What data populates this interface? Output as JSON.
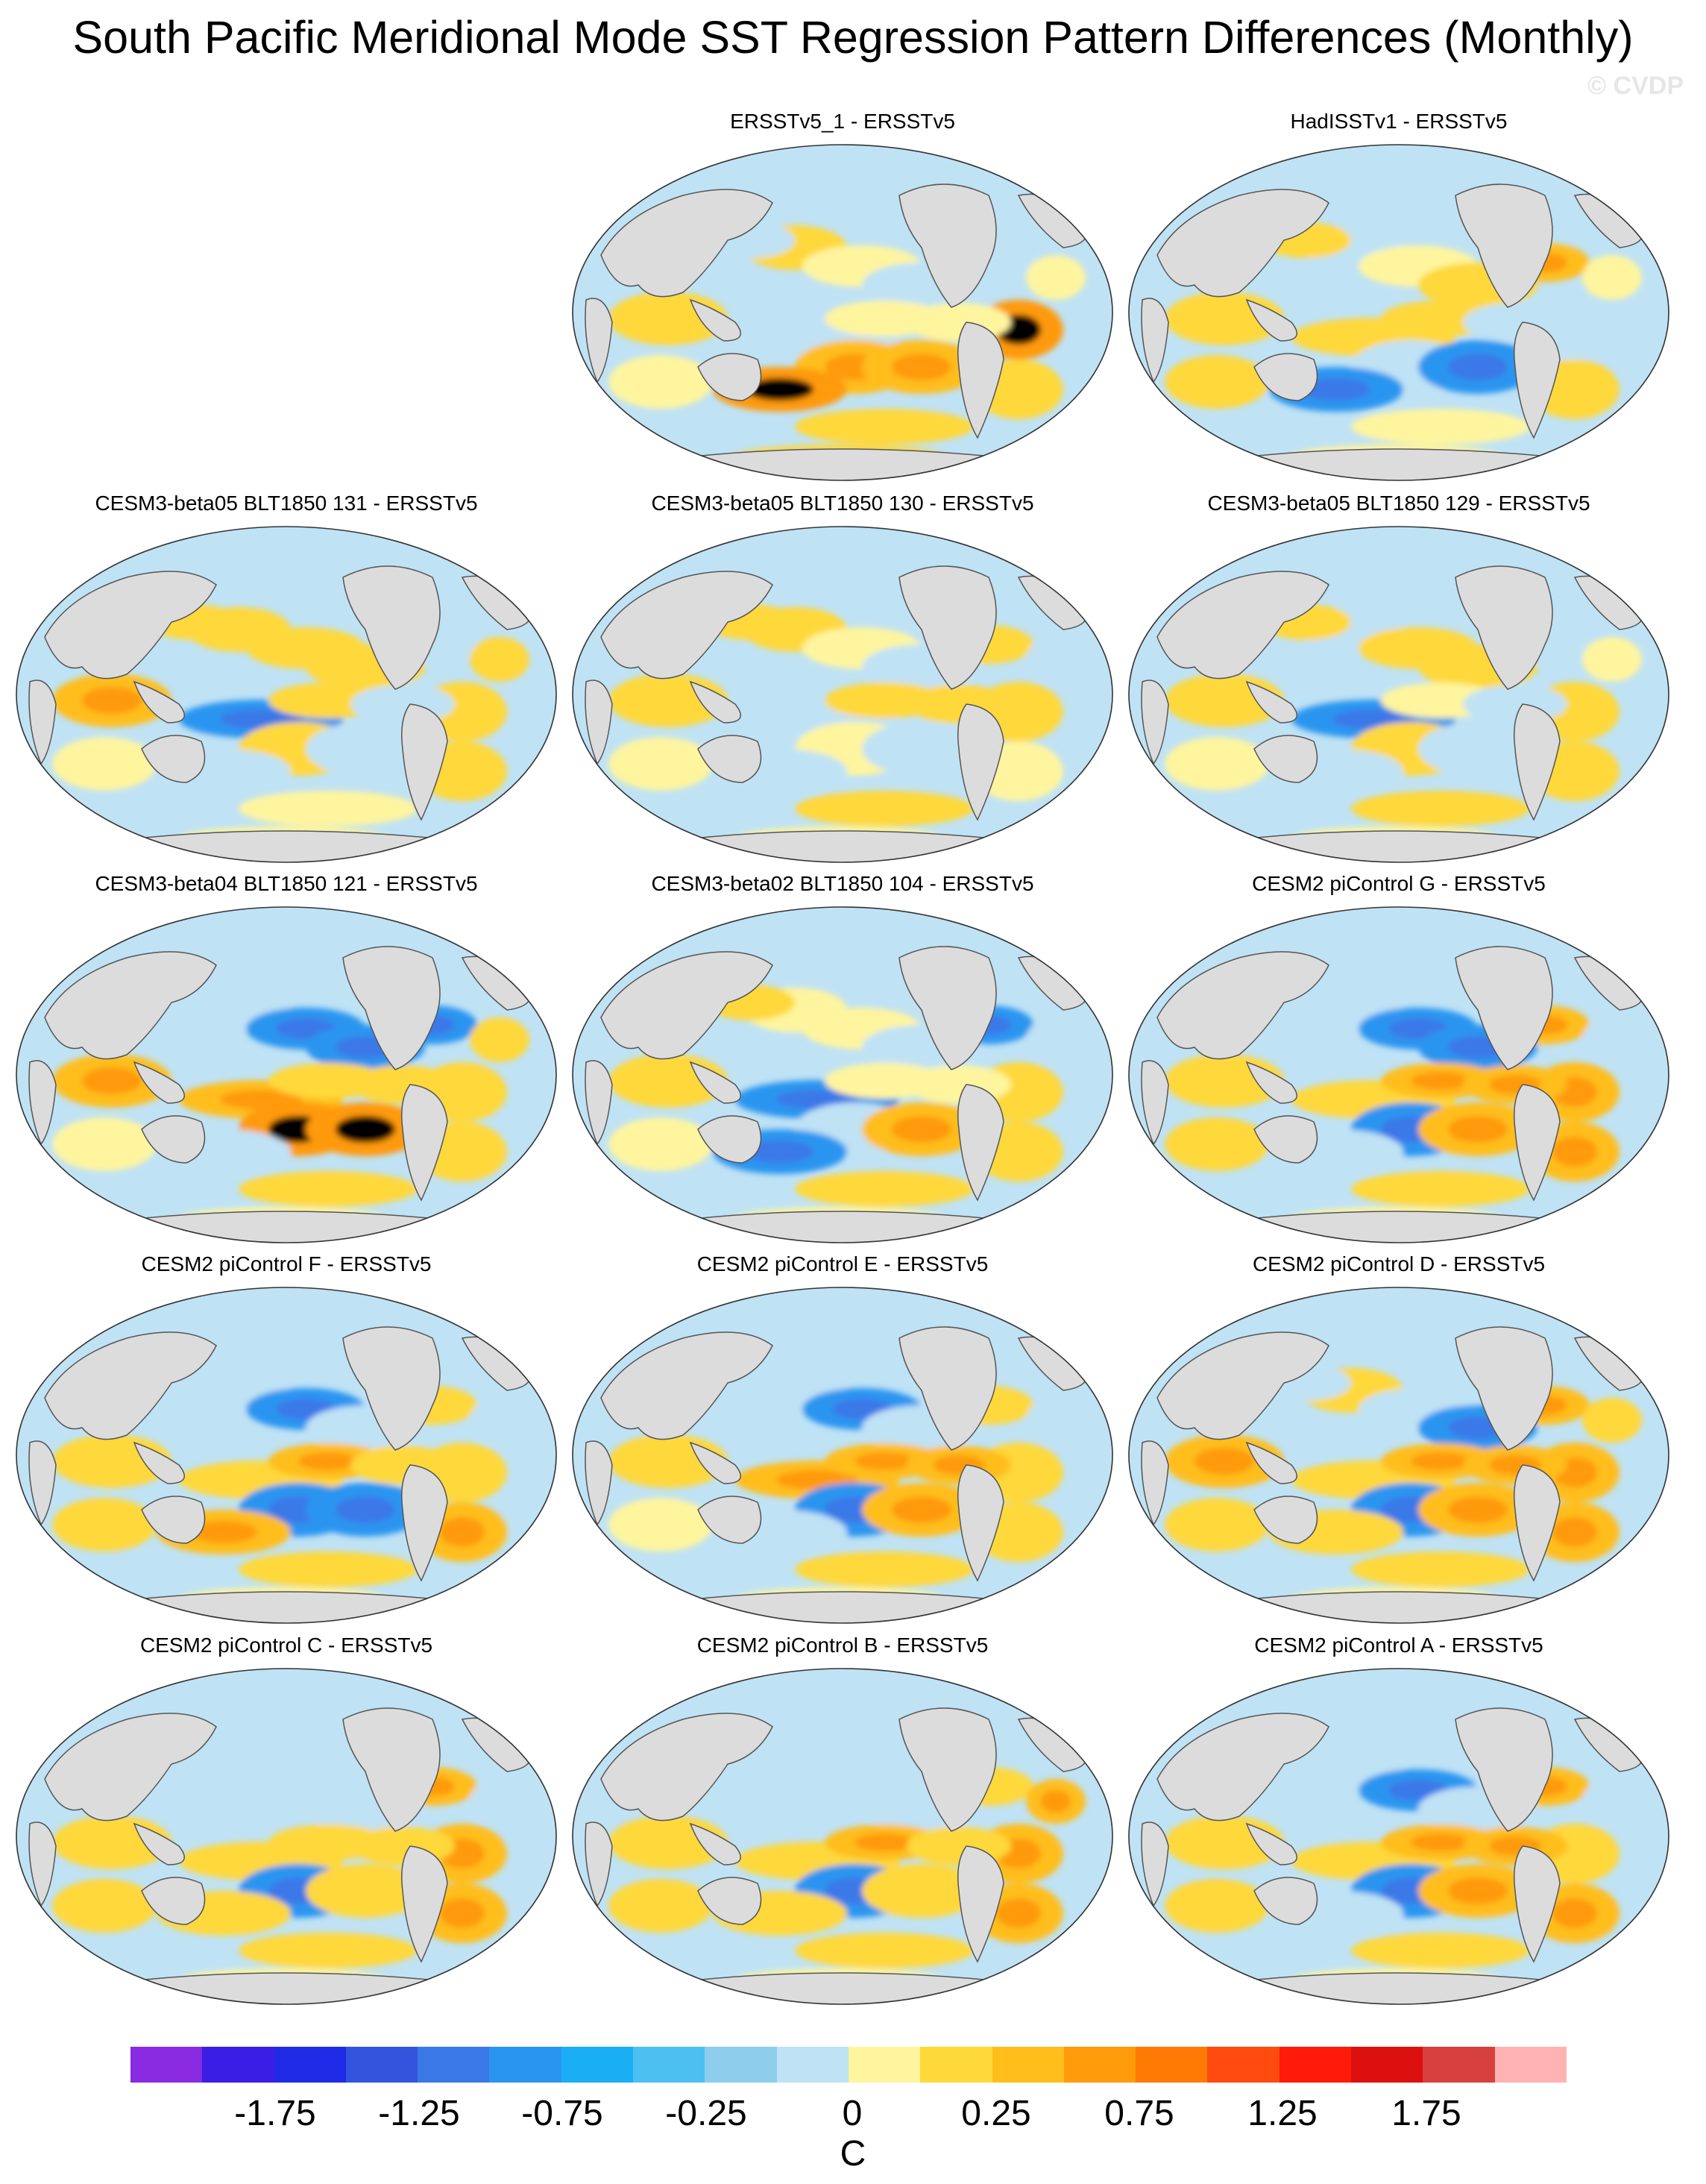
{
  "title": "South Pacific Meridional Mode SST Regression Pattern Differences (Monthly)",
  "watermark": "© CVDP",
  "colors": {
    "land": "#dcdcdc",
    "coastline": "#555555",
    "palette": [
      "#8a2be2",
      "#3a1ee6",
      "#1e2ae6",
      "#3355dd",
      "#3a78e8",
      "#2a95f0",
      "#1aaef5",
      "#4cc0f0",
      "#8ecdeb",
      "#bfe2f5",
      "#fff59e",
      "#ffd83a",
      "#ffbe1a",
      "#ff9a0a",
      "#ff7a05",
      "#ff4a10",
      "#ff1a0a",
      "#dd1010",
      "#d84040",
      "#ffb3b3"
    ]
  },
  "panels": [
    {
      "title": "ERSSTv5_1 - ERSSTv5",
      "pattern": [
        1,
        1,
        0,
        -1,
        -1,
        -1,
        0,
        2,
        2,
        3,
        3,
        0,
        1,
        -1,
        0,
        1,
        0,
        1
      ]
    },
    {
      "title": "HadISSTv1 - ERSSTv5",
      "pattern": [
        1,
        -1,
        0,
        1,
        2,
        1,
        1,
        -1,
        -2,
        -2,
        -1,
        1,
        0,
        1,
        -1,
        1,
        0,
        0
      ]
    },
    {
      "title": "CESM3-beta05 BLT1850 131 - ERSSTv5",
      "pattern": [
        2,
        1,
        1,
        1,
        -1,
        -2,
        1,
        1,
        -1,
        -1,
        1,
        0,
        0,
        1,
        -1,
        1,
        1,
        0
      ]
    },
    {
      "title": "CESM3-beta05 BLT1850 130 - ERSSTv5",
      "pattern": [
        1,
        1,
        0,
        -1,
        1,
        -1,
        1,
        0,
        -1,
        -1,
        1,
        0,
        1,
        1,
        1,
        0,
        -1,
        0
      ]
    },
    {
      "title": "CESM3-beta05 BLT1850 129 - ERSSTv5",
      "pattern": [
        1,
        -1,
        1,
        1,
        -1,
        -2,
        0,
        1,
        -1,
        -1,
        1,
        0,
        1,
        1,
        -1,
        1,
        0,
        0
      ]
    },
    {
      "title": "CESM3-beta04 BLT1850 121 - ERSSTv5",
      "pattern": [
        2,
        -1,
        -2,
        -2,
        -2,
        2,
        1,
        3,
        3,
        -1,
        1,
        0,
        1,
        -1,
        1,
        1,
        1,
        0
      ]
    },
    {
      "title": "CESM3-beta02 BLT1850 104 - ERSSTv5",
      "pattern": [
        1,
        0,
        0,
        -1,
        -2,
        -2,
        0,
        -1,
        2,
        -2,
        1,
        0,
        1,
        1,
        0,
        1,
        -1,
        0
      ]
    },
    {
      "title": "CESM2 piControl G - ERSSTv5",
      "pattern": [
        1,
        -1,
        -2,
        -2,
        2,
        1,
        2,
        -2,
        2,
        -1,
        2,
        1,
        1,
        -1,
        2,
        2,
        -1,
        0
      ]
    },
    {
      "title": "CESM2 piControl F - ERSSTv5",
      "pattern": [
        1,
        -1,
        -2,
        -1,
        1,
        1,
        2,
        -2,
        -2,
        2,
        1,
        1,
        1,
        -1,
        1,
        2,
        -1,
        0
      ]
    },
    {
      "title": "CESM2 piControl E - ERSSTv5",
      "pattern": [
        1,
        -1,
        -2,
        -1,
        1,
        2,
        2,
        -2,
        2,
        -1,
        1,
        0,
        1,
        -1,
        2,
        1,
        -1,
        0
      ]
    },
    {
      "title": "CESM2 piControl D - ERSSTv5",
      "pattern": [
        2,
        1,
        -1,
        -2,
        2,
        1,
        2,
        -2,
        2,
        1,
        2,
        1,
        1,
        -1,
        2,
        2,
        1,
        0
      ]
    },
    {
      "title": "CESM2 piControl C - ERSSTv5",
      "pattern": [
        1,
        -1,
        -1,
        -1,
        2,
        1,
        1,
        -2,
        1,
        1,
        2,
        1,
        1,
        -1,
        1,
        2,
        -1,
        0
      ]
    },
    {
      "title": "CESM2 piControl B - ERSSTv5",
      "pattern": [
        1,
        -1,
        -1,
        -1,
        1,
        1,
        2,
        -2,
        1,
        1,
        2,
        1,
        1,
        -1,
        1,
        2,
        2,
        0
      ]
    },
    {
      "title": "CESM2 piControl A - ERSSTv5",
      "pattern": [
        1,
        -1,
        -2,
        -1,
        2,
        1,
        2,
        -2,
        2,
        -1,
        1,
        1,
        1,
        -1,
        2,
        2,
        -1,
        0
      ]
    }
  ],
  "colorbar": {
    "labels": [
      "-1.75",
      "-1.25",
      "-0.75",
      "-0.25",
      "0",
      "0.25",
      "0.75",
      "1.25",
      "1.75"
    ],
    "unit": "C"
  }
}
